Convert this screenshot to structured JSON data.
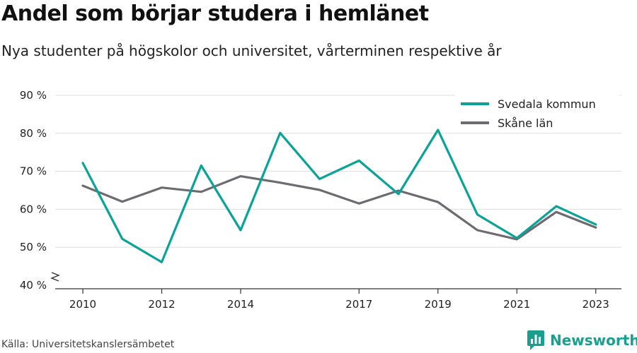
{
  "header": {
    "title": "Andel som börjar studera i hemlänet",
    "subtitle": "Nya studenter på högskolor och universitet, vårterminen respektive år"
  },
  "footer": {
    "source": "Källa: Universitetskanslersämbetet",
    "brand": "Newsworthy"
  },
  "colors": {
    "series_1": "#0aa398",
    "series_2": "#6d6b70",
    "grid": "#dddddd",
    "axis": "#333333"
  },
  "chart_data": {
    "type": "line",
    "x": [
      2010,
      2011,
      2012,
      2013,
      2014,
      2015,
      2016,
      2017,
      2018,
      2019,
      2020,
      2021,
      2022,
      2023
    ],
    "x_tick_labels": [
      "2010",
      "2012",
      "2014",
      "2017",
      "2019",
      "2021",
      "2023"
    ],
    "x_tick_values": [
      2010,
      2012,
      2014,
      2017,
      2019,
      2021,
      2023
    ],
    "y_tick_labels": [
      "40 %",
      "50 %",
      "60 %",
      "70 %",
      "80 %",
      "90 %"
    ],
    "y_tick_values": [
      40,
      50,
      60,
      70,
      80,
      90
    ],
    "ylim": [
      40,
      90
    ],
    "xlim": [
      2009.3,
      2023.65
    ],
    "y_axis_break": true,
    "grid": true,
    "legend_position": "top-right",
    "series": [
      {
        "name": "Svedala kommun",
        "color": "#0aa398",
        "values": [
          72.2,
          52.2,
          46.1,
          71.5,
          54.5,
          80.1,
          68.0,
          72.8,
          64.0,
          80.9,
          58.6,
          52.4,
          60.8,
          56.0
        ]
      },
      {
        "name": "Skåne län",
        "color": "#6d6b70",
        "values": [
          66.2,
          62.0,
          65.7,
          64.6,
          68.7,
          67.0,
          65.1,
          61.5,
          64.9,
          61.9,
          54.5,
          52.1,
          59.3,
          55.2
        ]
      }
    ]
  }
}
